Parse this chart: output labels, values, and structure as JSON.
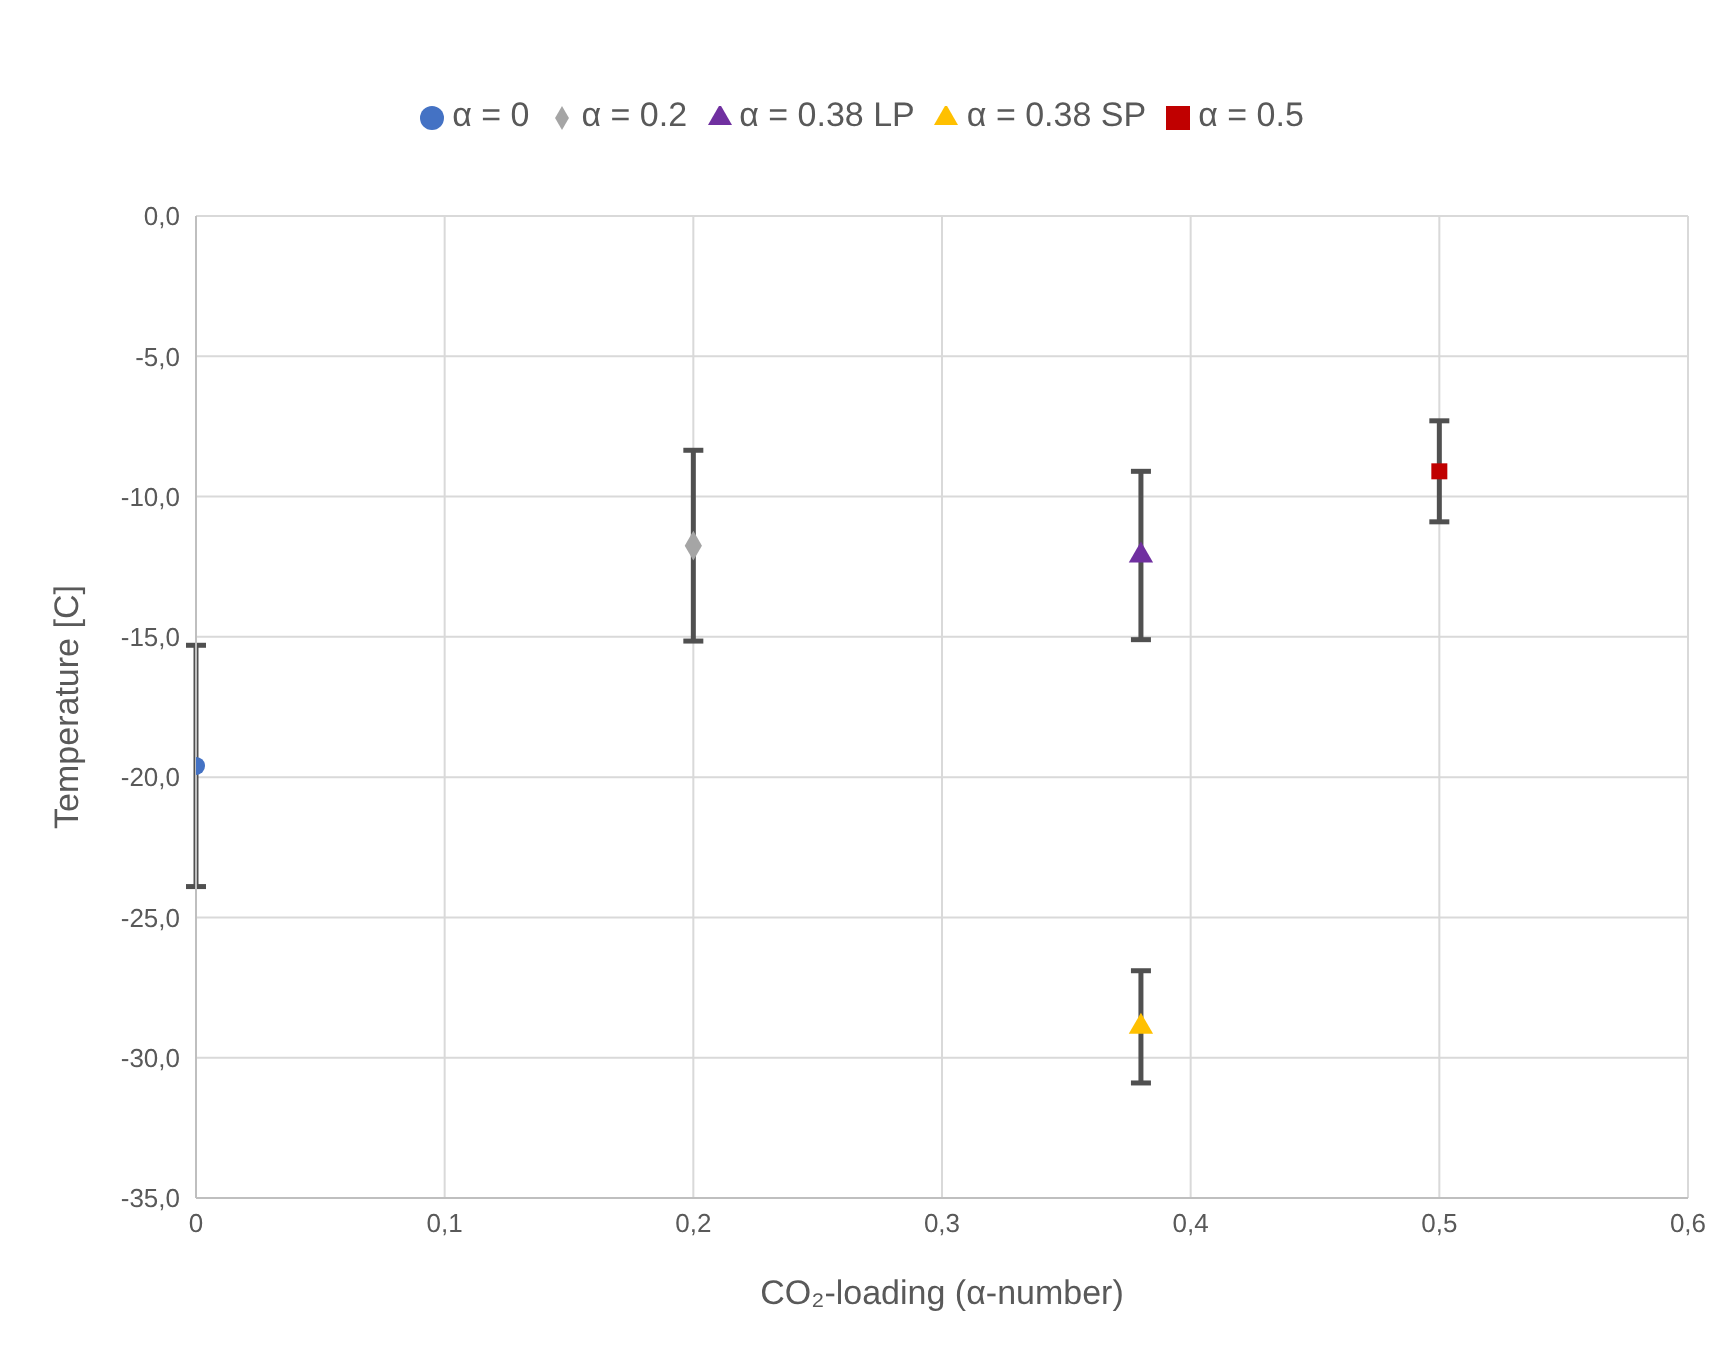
{
  "chart_data": {
    "type": "scatter",
    "xlabel": "CO₂-loading (α-number)",
    "ylabel": "Temperature [C]",
    "xlim": [
      0,
      0.6
    ],
    "xticks": [
      0,
      {
        "value": 0.1,
        "label": "0,1"
      },
      {
        "value": 0.2,
        "label": "0,2"
      },
      {
        "value": 0.3,
        "label": "0,3"
      },
      {
        "value": 0.4,
        "label": "0,4"
      },
      {
        "value": 0.5,
        "label": "0,5"
      },
      {
        "value": 0.6,
        "label": "0,6"
      }
    ],
    "ylim": [
      -35,
      0
    ],
    "yticks": [
      {
        "value": -35,
        "label": "-35,0"
      },
      {
        "value": -30,
        "label": "-30,0"
      },
      {
        "value": -25,
        "label": "-25,0"
      },
      {
        "value": -20,
        "label": "-20,0"
      },
      {
        "value": -15,
        "label": "-15,0"
      },
      {
        "value": -10,
        "label": "-10,0"
      },
      {
        "value": -5,
        "label": "-5,0"
      },
      {
        "value": 0,
        "label": "0,0"
      }
    ],
    "grid": true,
    "legend": "top",
    "series": [
      {
        "name": "α = 0",
        "color": "#4472c4",
        "marker": "circle",
        "x": [
          0
        ],
        "values": [
          -19.6
        ],
        "errors": [
          4.3
        ]
      },
      {
        "name": "α = 0.2",
        "color": "#a5a5a5",
        "marker": "diamond",
        "x": [
          0.2
        ],
        "values": [
          -11.75
        ],
        "errors": [
          3.4
        ]
      },
      {
        "name": "α = 0.38 LP",
        "color": "#7030a0",
        "marker": "triangle",
        "x": [
          0.38
        ],
        "values": [
          -12.1
        ],
        "errors": [
          3.0
        ]
      },
      {
        "name": "α = 0.38 SP",
        "color": "#ffc000",
        "marker": "triangle",
        "x": [
          0.38
        ],
        "values": [
          -28.9
        ],
        "errors": [
          2.0
        ]
      },
      {
        "name": "α = 0.5",
        "color": "#c00000",
        "marker": "square",
        "x": [
          0.5
        ],
        "values": [
          -9.1
        ],
        "errors": [
          1.8
        ]
      }
    ]
  }
}
